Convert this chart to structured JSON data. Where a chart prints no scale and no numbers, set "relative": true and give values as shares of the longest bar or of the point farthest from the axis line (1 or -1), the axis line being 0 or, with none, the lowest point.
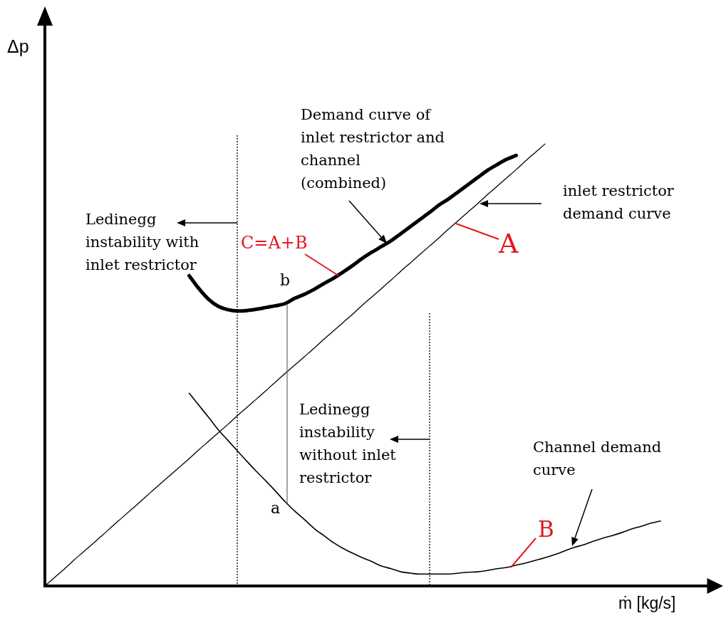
{
  "chart_data": {
    "type": "line",
    "relative": true,
    "xlabel": "ṁ [kg/s]",
    "ylabel": "Δp",
    "categories": [
      null,
      null,
      null,
      null,
      null,
      null,
      null,
      null,
      null,
      null,
      null,
      null,
      null,
      null,
      null,
      null,
      null,
      null,
      null,
      null,
      null,
      null,
      null,
      null,
      null,
      null,
      null,
      null,
      null,
      null,
      null,
      null,
      null,
      null,
      null,
      null,
      null,
      null,
      null,
      null,
      null,
      null,
      null,
      null,
      null,
      null,
      null,
      null,
      null,
      null,
      null,
      null,
      null,
      null,
      null,
      null,
      null,
      null,
      null,
      null,
      null,
      null,
      null,
      null,
      null,
      null,
      null,
      null,
      null,
      null
    ],
    "series": [
      {
        "name": "A",
        "color": "#000000",
        "values": [
          0,
          0.019,
          0.038,
          0.058,
          0.077,
          0.096,
          0.115,
          0.135,
          0.154,
          0.173,
          0.192,
          0.212,
          0.231,
          0.25,
          0.269,
          0.288,
          0.308,
          0.327,
          0.346,
          0.365,
          0.385,
          0.404,
          0.423,
          0.442,
          0.462,
          0.481,
          0.5,
          0.519,
          0.538,
          0.558,
          0.577,
          0.596,
          0.615,
          0.635,
          0.654,
          0.673,
          0.692,
          0.712,
          0.731,
          0.75,
          0.769,
          0.788,
          0.808,
          0.827,
          0.846,
          0.865,
          0.885,
          0.904,
          0.923,
          0.942,
          0.962,
          0.981,
          1,
          null,
          null,
          null,
          null,
          null,
          null,
          null,
          null,
          null,
          null,
          null,
          null,
          null,
          null,
          null,
          null,
          null
        ]
      },
      {
        "name": "B",
        "color": "#000000",
        "values": [
          null,
          null,
          null,
          null,
          null,
          null,
          null,
          null,
          null,
          null,
          null,
          null,
          null,
          null,
          null,
          0.436,
          0.409,
          0.382,
          0.354,
          0.33,
          0.306,
          0.282,
          0.259,
          0.237,
          0.214,
          0.19,
          0.169,
          0.15,
          0.13,
          0.114,
          0.098,
          0.085,
          0.074,
          0.064,
          0.055,
          0.045,
          0.039,
          0.032,
          0.029,
          0.027,
          0.027,
          0.027,
          0.027,
          0.029,
          0.031,
          0.032,
          0.035,
          0.039,
          0.042,
          0.047,
          0.052,
          0.058,
          0.064,
          0.071,
          0.079,
          0.087,
          0.093,
          0.101,
          0.108,
          0.114,
          0.121,
          0.129,
          0.135,
          0.142,
          0.147,
          null,
          null,
          null,
          null,
          null
        ]
      },
      {
        "name": "C=A+B",
        "color": "#000000",
        "values": [
          null,
          null,
          null,
          null,
          null,
          null,
          null,
          null,
          null,
          null,
          null,
          null,
          null,
          null,
          null,
          0.702,
          0.673,
          0.649,
          0.633,
          0.625,
          0.622,
          0.623,
          0.626,
          0.63,
          0.634,
          0.639,
          0.651,
          0.66,
          0.671,
          0.684,
          0.696,
          0.71,
          0.725,
          0.741,
          0.755,
          0.768,
          0.781,
          0.797,
          0.813,
          0.829,
          0.845,
          0.862,
          0.876,
          0.892,
          0.908,
          0.924,
          0.94,
          0.953,
          0.965,
          0.974,
          null,
          null,
          null,
          null,
          null,
          null,
          null,
          null,
          null,
          null,
          null,
          null,
          null,
          null,
          null,
          null,
          null,
          null,
          null,
          null
        ]
      }
    ],
    "annotations": [
      "Ledinegg\ninstability with\ninlet restrictor",
      "Demand curve of\ninlet restrictor and\nchannel\n(combined)",
      "inlet restrictor\ndemand curve",
      "Ledinegg\ninstability\nwithout inlet\nrestrictor",
      "Channel demand\ncurve",
      "a",
      "b"
    ]
  }
}
